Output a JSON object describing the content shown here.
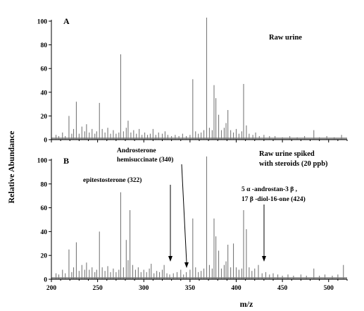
{
  "chart_data": [
    {
      "type": "line",
      "panel_letter": "A",
      "note": "Raw urine",
      "xlim": [
        200,
        520
      ],
      "ylim": [
        0,
        100
      ],
      "x_ticks": [
        200,
        250,
        300,
        350,
        400,
        450,
        500
      ],
      "y_ticks": [
        0,
        20,
        40,
        60,
        80,
        100
      ],
      "peaks": [
        {
          "mz": 205,
          "y": 4
        },
        {
          "mz": 208,
          "y": 3
        },
        {
          "mz": 212,
          "y": 6
        },
        {
          "mz": 215,
          "y": 3
        },
        {
          "mz": 219,
          "y": 20
        },
        {
          "mz": 222,
          "y": 5
        },
        {
          "mz": 224,
          "y": 9
        },
        {
          "mz": 227,
          "y": 32
        },
        {
          "mz": 230,
          "y": 5
        },
        {
          "mz": 233,
          "y": 11
        },
        {
          "mz": 236,
          "y": 7
        },
        {
          "mz": 238,
          "y": 13
        },
        {
          "mz": 241,
          "y": 6
        },
        {
          "mz": 244,
          "y": 9
        },
        {
          "mz": 247,
          "y": 5
        },
        {
          "mz": 249,
          "y": 7
        },
        {
          "mz": 252,
          "y": 31
        },
        {
          "mz": 255,
          "y": 9
        },
        {
          "mz": 258,
          "y": 6
        },
        {
          "mz": 261,
          "y": 10
        },
        {
          "mz": 264,
          "y": 5
        },
        {
          "mz": 267,
          "y": 8
        },
        {
          "mz": 270,
          "y": 5
        },
        {
          "mz": 273,
          "y": 6
        },
        {
          "mz": 275,
          "y": 72
        },
        {
          "mz": 278,
          "y": 7
        },
        {
          "mz": 281,
          "y": 10
        },
        {
          "mz": 283,
          "y": 16
        },
        {
          "mz": 286,
          "y": 6
        },
        {
          "mz": 289,
          "y": 8
        },
        {
          "mz": 292,
          "y": 5
        },
        {
          "mz": 295,
          "y": 9
        },
        {
          "mz": 298,
          "y": 4
        },
        {
          "mz": 301,
          "y": 6
        },
        {
          "mz": 304,
          "y": 4
        },
        {
          "mz": 307,
          "y": 5
        },
        {
          "mz": 310,
          "y": 9
        },
        {
          "mz": 313,
          "y": 4
        },
        {
          "mz": 316,
          "y": 6
        },
        {
          "mz": 320,
          "y": 5
        },
        {
          "mz": 323,
          "y": 7
        },
        {
          "mz": 326,
          "y": 4
        },
        {
          "mz": 330,
          "y": 3
        },
        {
          "mz": 334,
          "y": 4
        },
        {
          "mz": 338,
          "y": 3
        },
        {
          "mz": 342,
          "y": 5
        },
        {
          "mz": 346,
          "y": 3
        },
        {
          "mz": 350,
          "y": 4
        },
        {
          "mz": 353,
          "y": 51
        },
        {
          "mz": 356,
          "y": 7
        },
        {
          "mz": 359,
          "y": 5
        },
        {
          "mz": 362,
          "y": 6
        },
        {
          "mz": 365,
          "y": 8
        },
        {
          "mz": 368,
          "y": 103
        },
        {
          "mz": 371,
          "y": 10
        },
        {
          "mz": 374,
          "y": 8
        },
        {
          "mz": 376,
          "y": 46
        },
        {
          "mz": 378,
          "y": 35
        },
        {
          "mz": 381,
          "y": 21
        },
        {
          "mz": 384,
          "y": 8
        },
        {
          "mz": 387,
          "y": 10
        },
        {
          "mz": 389,
          "y": 14
        },
        {
          "mz": 391,
          "y": 25
        },
        {
          "mz": 394,
          "y": 8
        },
        {
          "mz": 397,
          "y": 6
        },
        {
          "mz": 400,
          "y": 9
        },
        {
          "mz": 403,
          "y": 5
        },
        {
          "mz": 406,
          "y": 7
        },
        {
          "mz": 408,
          "y": 47
        },
        {
          "mz": 411,
          "y": 12
        },
        {
          "mz": 414,
          "y": 5
        },
        {
          "mz": 418,
          "y": 4
        },
        {
          "mz": 421,
          "y": 6
        },
        {
          "mz": 425,
          "y": 3
        },
        {
          "mz": 430,
          "y": 4
        },
        {
          "mz": 436,
          "y": 3
        },
        {
          "mz": 442,
          "y": 3
        },
        {
          "mz": 450,
          "y": 2
        },
        {
          "mz": 458,
          "y": 3
        },
        {
          "mz": 466,
          "y": 2
        },
        {
          "mz": 474,
          "y": 3
        },
        {
          "mz": 484,
          "y": 8
        },
        {
          "mz": 490,
          "y": 2
        },
        {
          "mz": 498,
          "y": 3
        },
        {
          "mz": 506,
          "y": 2
        },
        {
          "mz": 514,
          "y": 4
        }
      ]
    },
    {
      "type": "line",
      "panel_letter": "B",
      "note_lines": [
        "Raw urine spiked",
        "with steroids (20 ppb)"
      ],
      "xlim": [
        200,
        520
      ],
      "ylim": [
        0,
        100
      ],
      "x_ticks": [
        200,
        250,
        300,
        350,
        400,
        450,
        500
      ],
      "y_ticks": [
        0,
        20,
        40,
        60,
        80,
        100
      ],
      "xlabel": "m/z",
      "ylabel": "Relative Abundance",
      "annotations": [
        {
          "lines": [
            "epitestosterone (322)"
          ],
          "mz": 327,
          "y": 4
        },
        {
          "lines": [
            "Androsterone",
            "hemisuccinate (340)"
          ],
          "mz": 345,
          "y": 4
        },
        {
          "lines": [
            "5 α -androstan-3 β ,",
            "17 β -diol-16-one (424)"
          ],
          "mz": 427,
          "y": 4
        }
      ],
      "peaks": [
        {
          "mz": 205,
          "y": 5
        },
        {
          "mz": 208,
          "y": 4
        },
        {
          "mz": 212,
          "y": 8
        },
        {
          "mz": 215,
          "y": 5
        },
        {
          "mz": 219,
          "y": 25
        },
        {
          "mz": 222,
          "y": 6
        },
        {
          "mz": 224,
          "y": 10
        },
        {
          "mz": 227,
          "y": 31
        },
        {
          "mz": 230,
          "y": 7
        },
        {
          "mz": 233,
          "y": 12
        },
        {
          "mz": 236,
          "y": 8
        },
        {
          "mz": 238,
          "y": 14
        },
        {
          "mz": 241,
          "y": 8
        },
        {
          "mz": 244,
          "y": 10
        },
        {
          "mz": 247,
          "y": 6
        },
        {
          "mz": 249,
          "y": 8
        },
        {
          "mz": 252,
          "y": 40
        },
        {
          "mz": 255,
          "y": 10
        },
        {
          "mz": 258,
          "y": 7
        },
        {
          "mz": 261,
          "y": 11
        },
        {
          "mz": 264,
          "y": 6
        },
        {
          "mz": 267,
          "y": 9
        },
        {
          "mz": 270,
          "y": 6
        },
        {
          "mz": 273,
          "y": 8
        },
        {
          "mz": 275,
          "y": 73
        },
        {
          "mz": 278,
          "y": 10
        },
        {
          "mz": 281,
          "y": 33
        },
        {
          "mz": 283,
          "y": 16
        },
        {
          "mz": 285,
          "y": 58
        },
        {
          "mz": 288,
          "y": 12
        },
        {
          "mz": 291,
          "y": 8
        },
        {
          "mz": 294,
          "y": 10
        },
        {
          "mz": 297,
          "y": 6
        },
        {
          "mz": 300,
          "y": 8
        },
        {
          "mz": 303,
          "y": 6
        },
        {
          "mz": 306,
          "y": 9
        },
        {
          "mz": 308,
          "y": 13
        },
        {
          "mz": 311,
          "y": 5
        },
        {
          "mz": 314,
          "y": 7
        },
        {
          "mz": 317,
          "y": 6
        },
        {
          "mz": 320,
          "y": 8
        },
        {
          "mz": 322,
          "y": 12
        },
        {
          "mz": 325,
          "y": 5
        },
        {
          "mz": 328,
          "y": 4
        },
        {
          "mz": 332,
          "y": 5
        },
        {
          "mz": 336,
          "y": 6
        },
        {
          "mz": 340,
          "y": 8
        },
        {
          "mz": 343,
          "y": 4
        },
        {
          "mz": 346,
          "y": 6
        },
        {
          "mz": 350,
          "y": 8
        },
        {
          "mz": 353,
          "y": 51
        },
        {
          "mz": 356,
          "y": 10
        },
        {
          "mz": 359,
          "y": 6
        },
        {
          "mz": 362,
          "y": 7
        },
        {
          "mz": 365,
          "y": 9
        },
        {
          "mz": 368,
          "y": 103
        },
        {
          "mz": 371,
          "y": 12
        },
        {
          "mz": 374,
          "y": 9
        },
        {
          "mz": 376,
          "y": 51
        },
        {
          "mz": 378,
          "y": 36
        },
        {
          "mz": 381,
          "y": 24
        },
        {
          "mz": 384,
          "y": 9
        },
        {
          "mz": 387,
          "y": 12
        },
        {
          "mz": 389,
          "y": 15
        },
        {
          "mz": 391,
          "y": 29
        },
        {
          "mz": 394,
          "y": 10
        },
        {
          "mz": 397,
          "y": 30
        },
        {
          "mz": 400,
          "y": 10
        },
        {
          "mz": 403,
          "y": 8
        },
        {
          "mz": 406,
          "y": 9
        },
        {
          "mz": 408,
          "y": 58
        },
        {
          "mz": 411,
          "y": 42
        },
        {
          "mz": 414,
          "y": 10
        },
        {
          "mz": 417,
          "y": 7
        },
        {
          "mz": 420,
          "y": 9
        },
        {
          "mz": 424,
          "y": 12
        },
        {
          "mz": 428,
          "y": 5
        },
        {
          "mz": 432,
          "y": 6
        },
        {
          "mz": 436,
          "y": 4
        },
        {
          "mz": 440,
          "y": 5
        },
        {
          "mz": 445,
          "y": 4
        },
        {
          "mz": 450,
          "y": 3
        },
        {
          "mz": 456,
          "y": 4
        },
        {
          "mz": 462,
          "y": 3
        },
        {
          "mz": 470,
          "y": 4
        },
        {
          "mz": 476,
          "y": 3
        },
        {
          "mz": 484,
          "y": 9
        },
        {
          "mz": 490,
          "y": 3
        },
        {
          "mz": 496,
          "y": 4
        },
        {
          "mz": 504,
          "y": 3
        },
        {
          "mz": 510,
          "y": 4
        },
        {
          "mz": 516,
          "y": 12
        }
      ]
    }
  ]
}
